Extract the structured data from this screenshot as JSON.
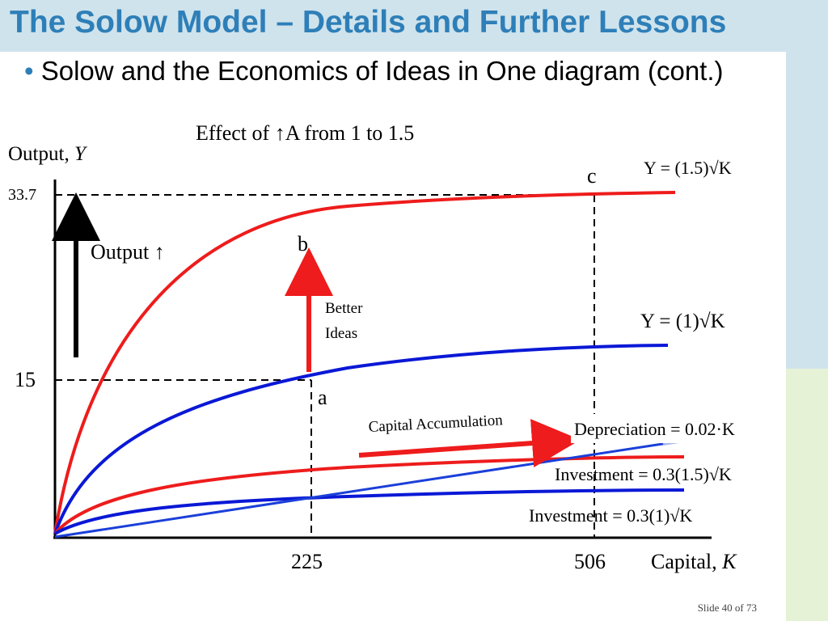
{
  "slide": {
    "title": "The Solow Model – Details and Further Lessons",
    "bullet_marker": "•",
    "bullet_text": "Solow and the Economics of Ideas in One diagram (cont.)",
    "slide_number": "Slide 40 of 73"
  },
  "diagram": {
    "heading": "Effect of ↑A from 1 to 1.5",
    "y_axis_label": "Output, ",
    "y_axis_var": "Y",
    "x_axis_label": "Capital, ",
    "x_axis_var": "K",
    "y_ticks": [
      "33.7",
      "15"
    ],
    "x_ticks": [
      "225",
      "506"
    ],
    "points": {
      "a": "a",
      "b": "b",
      "c": "c"
    },
    "output_arrow_label": "Output ↑",
    "better_ideas_line1": "Better",
    "better_ideas_line2": "Ideas",
    "capital_accumulation_label": "Capital Accumulation",
    "curve_labels": {
      "high_output": "Y = (1.5)√K",
      "low_output": "Y = (1)√K",
      "depreciation": "Depreciation = 0.02·K",
      "high_investment": "Investment = 0.3(1.5)√K",
      "low_investment": "Investment = 0.3(1)√K"
    },
    "colors": {
      "high": "#ee1c1c",
      "low": "#0a18d6",
      "depreciation": "#1a3fd9"
    }
  }
}
